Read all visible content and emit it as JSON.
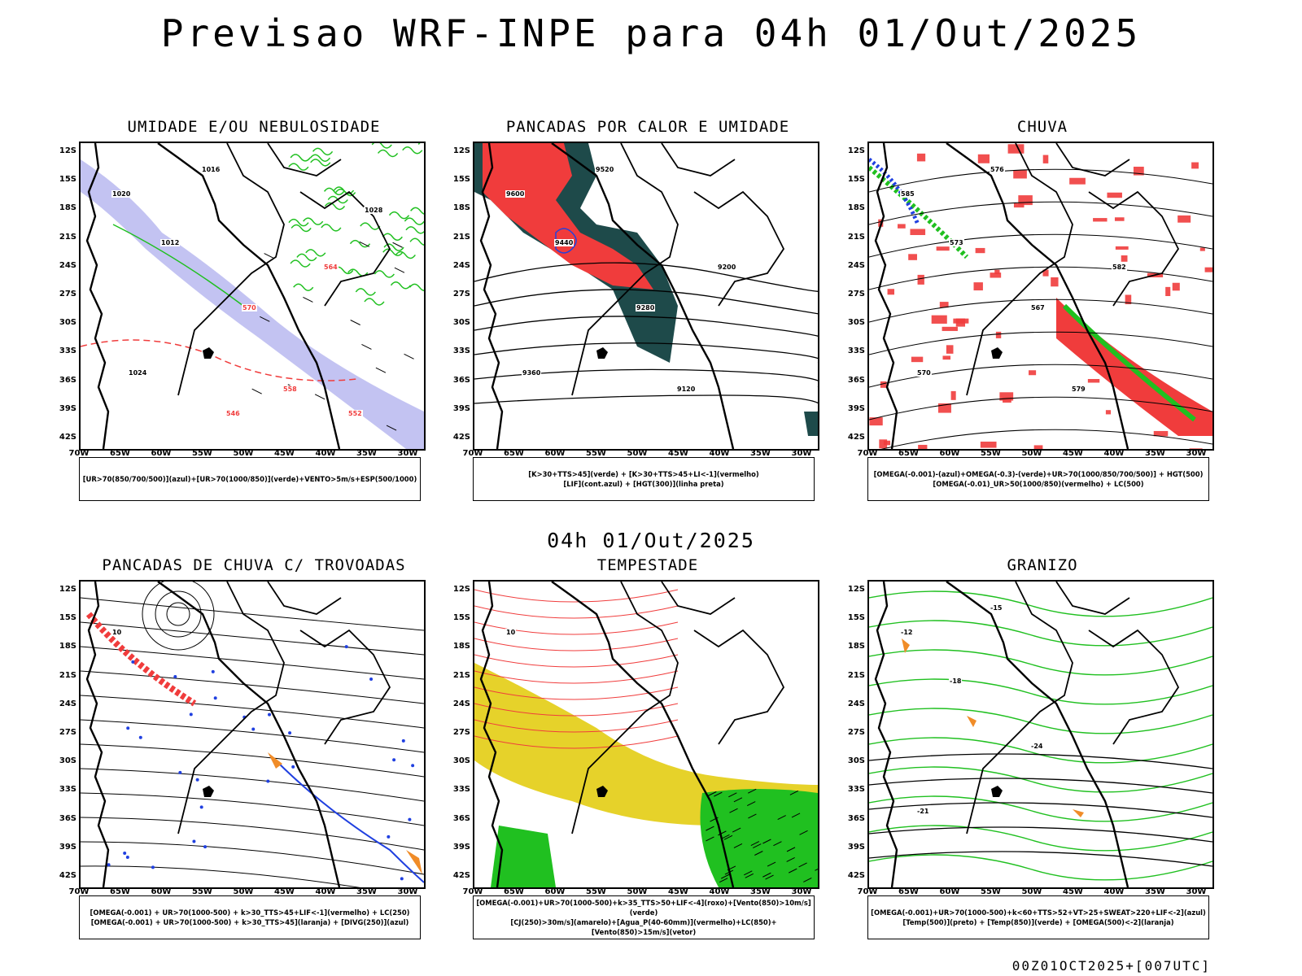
{
  "title": "Previsao WRF-INPE  para 04h 01/Out/2025",
  "mid_title": "04h 01/Out/2025",
  "footer": "00Z01OCT2025+[007UTC]",
  "lat_labels": [
    "12S",
    "15S",
    "18S",
    "21S",
    "24S",
    "27S",
    "30S",
    "33S",
    "36S",
    "39S",
    "42S"
  ],
  "lon_labels": [
    "70W",
    "65W",
    "60W",
    "55W",
    "50W",
    "45W",
    "40W",
    "35W",
    "30W"
  ],
  "panels": [
    {
      "title": "UMIDADE E/OU NEBULOSIDADE",
      "legend": [
        "[UR>70(850/700/500)](azul)+[UR>70(1000/850)](verde)+VENTO>5m/s+ESP(500/1000)"
      ],
      "contour_labels": [
        "1020",
        "1016",
        "1012",
        "1024",
        "570",
        "564",
        "558",
        "552",
        "546",
        "1028"
      ]
    },
    {
      "title": "PANCADAS POR CALOR E UMIDADE",
      "legend": [
        "[K>30+TTS>45](verde) + [K>30+TTS>45+LI<-1](vermelho)",
        "[LIF](cont.azul) + [HGT(300)](linha preta)"
      ],
      "contour_labels": [
        "9600",
        "9520",
        "9440",
        "9360",
        "9280",
        "9200",
        "9120"
      ]
    },
    {
      "title": "CHUVA",
      "legend": [
        "[OMEGA(-0.001)-(azul)+OMEGA(-0.3)-(verde)+UR>70(1000/850/700/500)] + HGT(500)",
        "[OMEGA(-0.01)_UR>50(1000/850)(vermelho) + LC(500)"
      ],
      "contour_labels": [
        "585",
        "576",
        "573",
        "570",
        "567",
        "582",
        "579"
      ]
    },
    {
      "title": "PANCADAS DE CHUVA C/ TROVOADAS",
      "legend": [
        "[OMEGA(-0.001) + UR>70(1000-500) + k>30_TTS>45+LIF<-1](vermelho) + LC(250)",
        "[OMEGA(-0.001) + UR>70(1000-500) + k>30_TTS>45](laranja) + [DIVG(250)](azul)"
      ],
      "contour_labels": [
        "10"
      ]
    },
    {
      "title": "TEMPESTADE",
      "legend": [
        "[OMEGA(-0.001)+UR>70(1000-500)+k>35_TTS>50+LIF<-4](roxo)+[Vento(850)>10m/s](verde)",
        "[CJ(250)>30m/s](amarelo)+[Agua_P(40-60mm)](vermelho)+LC(850)+[Vento(850)>15m/s](vetor)"
      ],
      "contour_labels": [
        "10"
      ]
    },
    {
      "title": "GRANIZO",
      "legend": [
        "[OMEGA(-0.001)+UR>70(1000-500)+k<60+TTS>52+VT>25+SWEAT>220+LIF<-2](azul)",
        "[Temp(500)](preto) + [Temp(850)](verde) + [OMEGA(500)<-2](laranja)"
      ],
      "contour_labels": [
        "-12",
        "-15",
        "-18",
        "-21",
        "-24"
      ]
    }
  ],
  "colors": {
    "border": "#000000",
    "red": "#f03c3c",
    "green": "#20c020",
    "blue": "#2040e0",
    "lavender": "#b8b8f0",
    "darkteal": "#1e4a4a",
    "yellow": "#e6d22a",
    "orange": "#f08c28"
  }
}
